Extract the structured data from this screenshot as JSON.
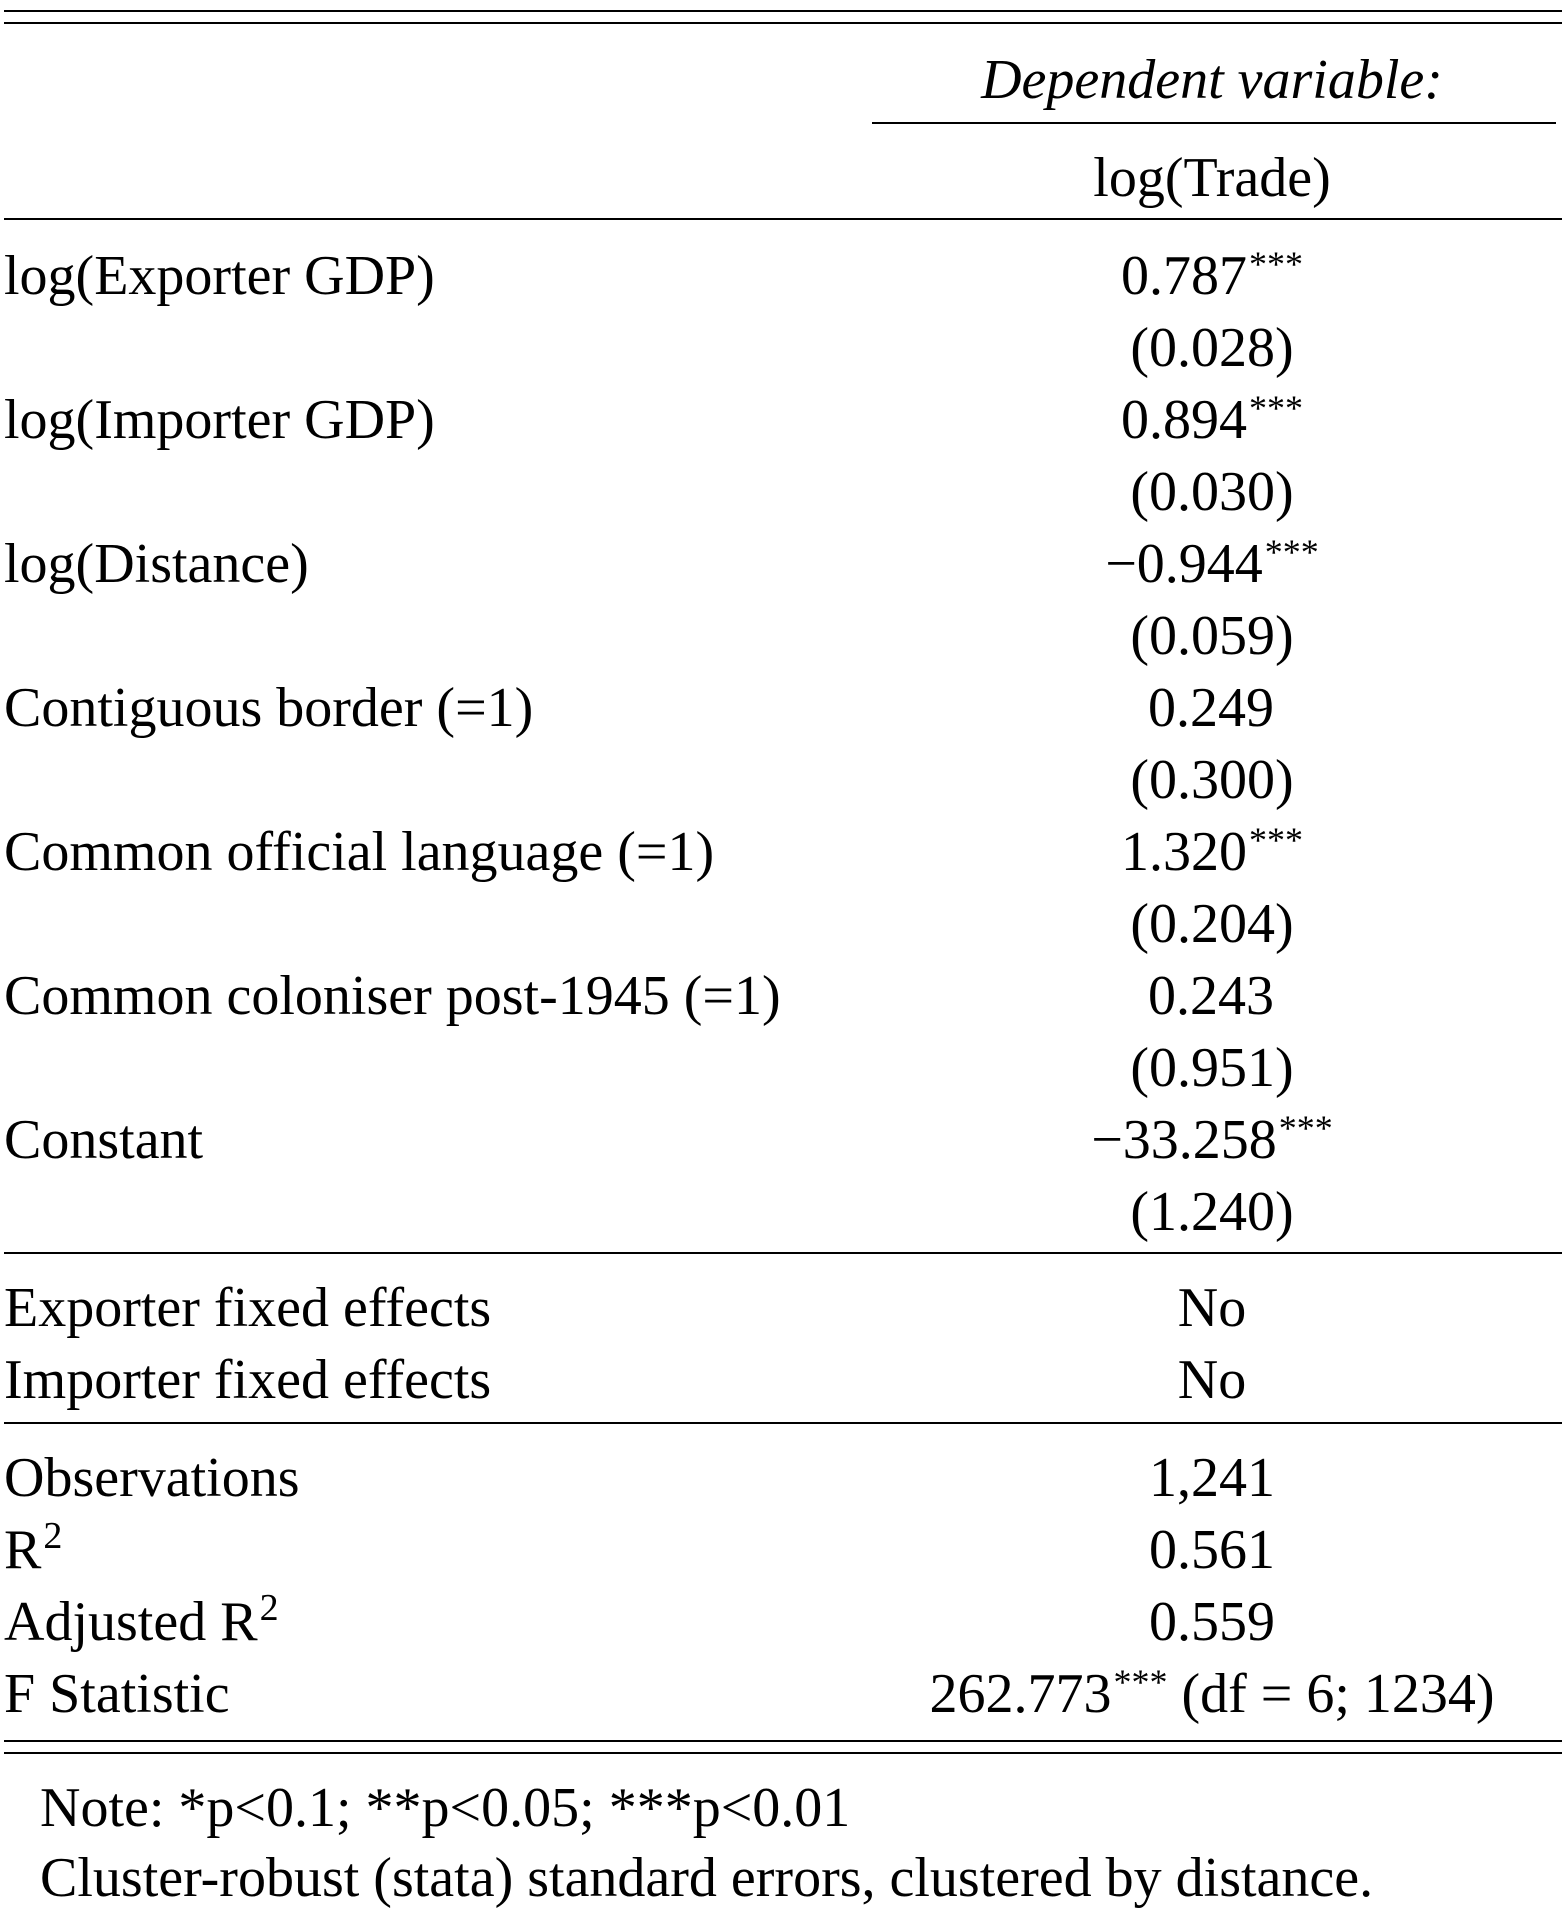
{
  "header": {
    "dependent_variable_label": "Dependent variable:",
    "dependent_variable": "log(Trade)"
  },
  "coefficients": [
    {
      "label": "log(Exporter GDP)",
      "estimate": "0.787",
      "stars": "***",
      "se": "(0.028)"
    },
    {
      "label": "log(Importer GDP)",
      "estimate": "0.894",
      "stars": "***",
      "se": "(0.030)"
    },
    {
      "label": "log(Distance)",
      "estimate": "−0.944",
      "stars": "***",
      "se": "(0.059)"
    },
    {
      "label": "Contiguous border (=1)",
      "estimate": "0.249",
      "stars": "",
      "se": "(0.300)"
    },
    {
      "label": "Common official language (=1)",
      "estimate": "1.320",
      "stars": "***",
      "se": "(0.204)"
    },
    {
      "label": "Common coloniser post-1945 (=1)",
      "estimate": "0.243",
      "stars": "",
      "se": "(0.951)"
    },
    {
      "label": "Constant",
      "estimate": "−33.258",
      "stars": "***",
      "se": "(1.240)"
    }
  ],
  "fixed_effects": [
    {
      "label": "Exporter fixed effects",
      "value": "No"
    },
    {
      "label": "Importer fixed effects",
      "value": "No"
    }
  ],
  "statistics": {
    "observations_label": "Observations",
    "observations": "1,241",
    "r2_label": "R",
    "r2_sup": "2",
    "r2": "0.561",
    "adj_r2_label": "Adjusted R",
    "adj_r2_sup": "2",
    "adj_r2": "0.559",
    "f_label": "F Statistic",
    "f_value": "262.773",
    "f_stars": "***",
    "f_df": "(df = 6; 1234)"
  },
  "notes": {
    "line1": "Note:  *p<0.1; **p<0.05; ***p<0.01",
    "line2": "Cluster-robust (stata) standard errors, clustered by distance."
  }
}
